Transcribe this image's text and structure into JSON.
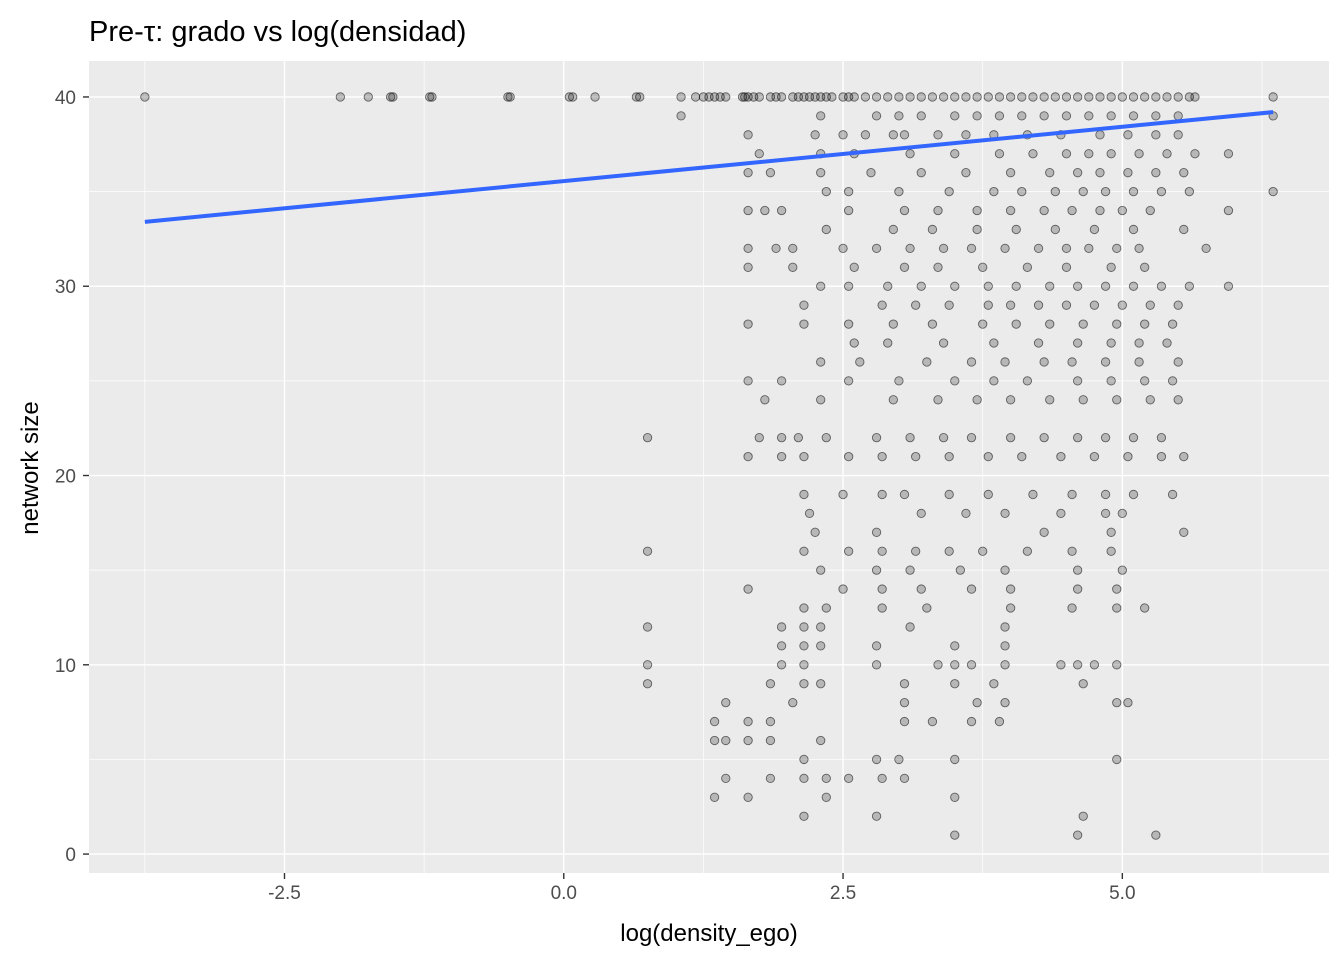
{
  "chart_data": {
    "type": "scatter",
    "title": "Pre-τ: grado vs log(densidad)",
    "xlabel": "log(density_ego)",
    "ylabel": "network size",
    "xlim": [
      -4.25,
      6.85
    ],
    "ylim": [
      -1.0,
      41.9
    ],
    "x_ticks": [
      -2.5,
      0.0,
      2.5,
      5.0
    ],
    "x_tick_labels": [
      "-2.5",
      "0.0",
      "2.5",
      "5.0"
    ],
    "y_ticks": [
      0,
      10,
      20,
      30,
      40
    ],
    "y_tick_labels": [
      "0",
      "10",
      "20",
      "30",
      "40"
    ],
    "grid": true,
    "legend": "none",
    "colors": {
      "panel": "#ebebeb",
      "grid": "#ffffff",
      "points": "#000000",
      "trend": "#3366ff"
    },
    "trend_line": {
      "method": "linear",
      "x": [
        -3.75,
        6.35
      ],
      "y": [
        33.4,
        39.2
      ]
    },
    "points": [
      [
        -3.75,
        40
      ],
      [
        -2.0,
        40
      ],
      [
        -1.75,
        40
      ],
      [
        -1.55,
        40
      ],
      [
        -1.53,
        40
      ],
      [
        -1.2,
        40
      ],
      [
        -1.18,
        40
      ],
      [
        -0.5,
        40
      ],
      [
        -0.48,
        40
      ],
      [
        0.05,
        40
      ],
      [
        0.08,
        40
      ],
      [
        0.28,
        40
      ],
      [
        0.65,
        40
      ],
      [
        0.68,
        40
      ],
      [
        1.05,
        40
      ],
      [
        1.18,
        40
      ],
      [
        1.25,
        40
      ],
      [
        1.3,
        40
      ],
      [
        1.35,
        40
      ],
      [
        1.4,
        40
      ],
      [
        1.45,
        40
      ],
      [
        1.6,
        40
      ],
      [
        1.62,
        40
      ],
      [
        1.65,
        40
      ],
      [
        1.7,
        40
      ],
      [
        1.75,
        40
      ],
      [
        1.85,
        40
      ],
      [
        1.9,
        40
      ],
      [
        1.95,
        40
      ],
      [
        2.05,
        40
      ],
      [
        2.1,
        40
      ],
      [
        2.15,
        40
      ],
      [
        2.2,
        40
      ],
      [
        2.25,
        40
      ],
      [
        2.3,
        40
      ],
      [
        2.35,
        40
      ],
      [
        2.4,
        40
      ],
      [
        2.5,
        40
      ],
      [
        2.55,
        40
      ],
      [
        2.6,
        40
      ],
      [
        2.7,
        40
      ],
      [
        2.8,
        40
      ],
      [
        2.9,
        40
      ],
      [
        3.0,
        40
      ],
      [
        3.1,
        40
      ],
      [
        3.2,
        40
      ],
      [
        3.3,
        40
      ],
      [
        3.4,
        40
      ],
      [
        3.5,
        40
      ],
      [
        3.6,
        40
      ],
      [
        3.7,
        40
      ],
      [
        3.8,
        40
      ],
      [
        3.9,
        40
      ],
      [
        4.0,
        40
      ],
      [
        4.1,
        40
      ],
      [
        4.2,
        40
      ],
      [
        4.3,
        40
      ],
      [
        4.4,
        40
      ],
      [
        4.5,
        40
      ],
      [
        4.6,
        40
      ],
      [
        4.7,
        40
      ],
      [
        4.8,
        40
      ],
      [
        4.9,
        40
      ],
      [
        5.0,
        40
      ],
      [
        5.1,
        40
      ],
      [
        5.2,
        40
      ],
      [
        5.3,
        40
      ],
      [
        5.4,
        40
      ],
      [
        5.5,
        40
      ],
      [
        5.6,
        40
      ],
      [
        5.65,
        40
      ],
      [
        6.35,
        40
      ],
      [
        1.05,
        39
      ],
      [
        2.3,
        39
      ],
      [
        2.8,
        39
      ],
      [
        3.0,
        39
      ],
      [
        3.2,
        39
      ],
      [
        3.5,
        39
      ],
      [
        3.7,
        39
      ],
      [
        3.9,
        39
      ],
      [
        4.1,
        39
      ],
      [
        4.3,
        39
      ],
      [
        4.5,
        39
      ],
      [
        4.7,
        39
      ],
      [
        4.9,
        39
      ],
      [
        5.1,
        39
      ],
      [
        5.3,
        39
      ],
      [
        5.5,
        39
      ],
      [
        6.35,
        39
      ],
      [
        1.65,
        38
      ],
      [
        2.25,
        38
      ],
      [
        2.5,
        38
      ],
      [
        2.7,
        38
      ],
      [
        2.95,
        38
      ],
      [
        3.05,
        38
      ],
      [
        3.35,
        38
      ],
      [
        3.6,
        38
      ],
      [
        3.85,
        38
      ],
      [
        4.15,
        38
      ],
      [
        4.45,
        38
      ],
      [
        4.8,
        38
      ],
      [
        5.05,
        38
      ],
      [
        5.3,
        38
      ],
      [
        5.5,
        38
      ],
      [
        1.75,
        37
      ],
      [
        2.3,
        37
      ],
      [
        2.6,
        37
      ],
      [
        3.1,
        37
      ],
      [
        3.5,
        37
      ],
      [
        3.9,
        37
      ],
      [
        4.2,
        37
      ],
      [
        4.5,
        37
      ],
      [
        4.7,
        37
      ],
      [
        4.9,
        37
      ],
      [
        5.15,
        37
      ],
      [
        5.4,
        37
      ],
      [
        5.65,
        37
      ],
      [
        5.95,
        37
      ],
      [
        1.65,
        36
      ],
      [
        1.85,
        36
      ],
      [
        2.3,
        36
      ],
      [
        2.75,
        36
      ],
      [
        3.2,
        36
      ],
      [
        3.6,
        36
      ],
      [
        4.0,
        36
      ],
      [
        4.35,
        36
      ],
      [
        4.6,
        36
      ],
      [
        4.8,
        36
      ],
      [
        5.05,
        36
      ],
      [
        5.3,
        36
      ],
      [
        5.55,
        36
      ],
      [
        2.35,
        35
      ],
      [
        2.55,
        35
      ],
      [
        3.0,
        35
      ],
      [
        3.45,
        35
      ],
      [
        3.85,
        35
      ],
      [
        4.1,
        35
      ],
      [
        4.4,
        35
      ],
      [
        4.65,
        35
      ],
      [
        4.85,
        35
      ],
      [
        5.1,
        35
      ],
      [
        5.35,
        35
      ],
      [
        5.6,
        35
      ],
      [
        6.35,
        35
      ],
      [
        1.65,
        34
      ],
      [
        1.8,
        34
      ],
      [
        1.95,
        34
      ],
      [
        2.55,
        34
      ],
      [
        3.05,
        34
      ],
      [
        3.35,
        34
      ],
      [
        3.7,
        34
      ],
      [
        4.0,
        34
      ],
      [
        4.3,
        34
      ],
      [
        4.55,
        34
      ],
      [
        4.8,
        34
      ],
      [
        5.0,
        34
      ],
      [
        5.25,
        34
      ],
      [
        5.95,
        34
      ],
      [
        2.35,
        33
      ],
      [
        2.95,
        33
      ],
      [
        3.3,
        33
      ],
      [
        3.7,
        33
      ],
      [
        4.05,
        33
      ],
      [
        4.4,
        33
      ],
      [
        4.75,
        33
      ],
      [
        5.1,
        33
      ],
      [
        5.55,
        33
      ],
      [
        1.65,
        32
      ],
      [
        1.9,
        32
      ],
      [
        2.05,
        32
      ],
      [
        2.5,
        32
      ],
      [
        2.8,
        32
      ],
      [
        3.1,
        32
      ],
      [
        3.4,
        32
      ],
      [
        3.65,
        32
      ],
      [
        3.95,
        32
      ],
      [
        4.25,
        32
      ],
      [
        4.5,
        32
      ],
      [
        4.7,
        32
      ],
      [
        4.95,
        32
      ],
      [
        5.15,
        32
      ],
      [
        5.75,
        32
      ],
      [
        1.65,
        31
      ],
      [
        2.05,
        31
      ],
      [
        2.6,
        31
      ],
      [
        3.05,
        31
      ],
      [
        3.35,
        31
      ],
      [
        3.75,
        31
      ],
      [
        4.15,
        31
      ],
      [
        4.5,
        31
      ],
      [
        4.9,
        31
      ],
      [
        5.2,
        31
      ],
      [
        2.3,
        30
      ],
      [
        2.55,
        30
      ],
      [
        2.9,
        30
      ],
      [
        3.2,
        30
      ],
      [
        3.5,
        30
      ],
      [
        3.8,
        30
      ],
      [
        4.05,
        30
      ],
      [
        4.35,
        30
      ],
      [
        4.6,
        30
      ],
      [
        4.85,
        30
      ],
      [
        5.1,
        30
      ],
      [
        5.35,
        30
      ],
      [
        5.6,
        30
      ],
      [
        5.95,
        30
      ],
      [
        2.15,
        29
      ],
      [
        2.85,
        29
      ],
      [
        3.15,
        29
      ],
      [
        3.45,
        29
      ],
      [
        3.8,
        29
      ],
      [
        4.0,
        29
      ],
      [
        4.25,
        29
      ],
      [
        4.5,
        29
      ],
      [
        4.75,
        29
      ],
      [
        5.0,
        29
      ],
      [
        5.25,
        29
      ],
      [
        5.5,
        29
      ],
      [
        1.65,
        28
      ],
      [
        2.15,
        28
      ],
      [
        2.55,
        28
      ],
      [
        2.95,
        28
      ],
      [
        3.3,
        28
      ],
      [
        3.75,
        28
      ],
      [
        4.05,
        28
      ],
      [
        4.35,
        28
      ],
      [
        4.65,
        28
      ],
      [
        4.95,
        28
      ],
      [
        5.2,
        28
      ],
      [
        5.45,
        28
      ],
      [
        2.6,
        27
      ],
      [
        2.9,
        27
      ],
      [
        3.4,
        27
      ],
      [
        3.85,
        27
      ],
      [
        4.25,
        27
      ],
      [
        4.6,
        27
      ],
      [
        4.9,
        27
      ],
      [
        5.15,
        27
      ],
      [
        5.4,
        27
      ],
      [
        2.3,
        26
      ],
      [
        2.65,
        26
      ],
      [
        3.25,
        26
      ],
      [
        3.65,
        26
      ],
      [
        3.95,
        26
      ],
      [
        4.3,
        26
      ],
      [
        4.55,
        26
      ],
      [
        4.85,
        26
      ],
      [
        5.15,
        26
      ],
      [
        5.5,
        26
      ],
      [
        1.65,
        25
      ],
      [
        1.95,
        25
      ],
      [
        2.55,
        25
      ],
      [
        3.0,
        25
      ],
      [
        3.5,
        25
      ],
      [
        3.85,
        25
      ],
      [
        4.15,
        25
      ],
      [
        4.6,
        25
      ],
      [
        4.9,
        25
      ],
      [
        5.2,
        25
      ],
      [
        5.45,
        25
      ],
      [
        1.8,
        24
      ],
      [
        2.3,
        24
      ],
      [
        2.95,
        24
      ],
      [
        3.35,
        24
      ],
      [
        3.7,
        24
      ],
      [
        4.0,
        24
      ],
      [
        4.35,
        24
      ],
      [
        4.65,
        24
      ],
      [
        4.95,
        24
      ],
      [
        5.25,
        24
      ],
      [
        5.5,
        24
      ],
      [
        0.75,
        22
      ],
      [
        1.75,
        22
      ],
      [
        1.95,
        22
      ],
      [
        2.1,
        22
      ],
      [
        2.35,
        22
      ],
      [
        2.8,
        22
      ],
      [
        3.1,
        22
      ],
      [
        3.4,
        22
      ],
      [
        3.65,
        22
      ],
      [
        4.0,
        22
      ],
      [
        4.3,
        22
      ],
      [
        4.6,
        22
      ],
      [
        4.85,
        22
      ],
      [
        5.1,
        22
      ],
      [
        5.35,
        22
      ],
      [
        1.65,
        21
      ],
      [
        1.95,
        21
      ],
      [
        2.15,
        21
      ],
      [
        2.55,
        21
      ],
      [
        2.85,
        21
      ],
      [
        3.15,
        21
      ],
      [
        3.45,
        21
      ],
      [
        3.8,
        21
      ],
      [
        4.1,
        21
      ],
      [
        4.45,
        21
      ],
      [
        4.75,
        21
      ],
      [
        5.05,
        21
      ],
      [
        5.35,
        21
      ],
      [
        5.55,
        21
      ],
      [
        2.15,
        19
      ],
      [
        2.5,
        19
      ],
      [
        2.85,
        19
      ],
      [
        3.05,
        19
      ],
      [
        3.45,
        19
      ],
      [
        3.8,
        19
      ],
      [
        4.2,
        19
      ],
      [
        4.55,
        19
      ],
      [
        4.85,
        19
      ],
      [
        5.1,
        19
      ],
      [
        5.45,
        19
      ],
      [
        2.2,
        18
      ],
      [
        3.2,
        18
      ],
      [
        3.6,
        18
      ],
      [
        3.95,
        18
      ],
      [
        4.45,
        18
      ],
      [
        4.85,
        18
      ],
      [
        5.0,
        18
      ],
      [
        2.25,
        17
      ],
      [
        2.8,
        17
      ],
      [
        4.3,
        17
      ],
      [
        4.9,
        17
      ],
      [
        5.55,
        17
      ],
      [
        0.75,
        16
      ],
      [
        2.15,
        16
      ],
      [
        2.55,
        16
      ],
      [
        2.85,
        16
      ],
      [
        3.15,
        16
      ],
      [
        3.45,
        16
      ],
      [
        3.75,
        16
      ],
      [
        4.15,
        16
      ],
      [
        4.55,
        16
      ],
      [
        4.9,
        16
      ],
      [
        2.3,
        15
      ],
      [
        2.8,
        15
      ],
      [
        3.1,
        15
      ],
      [
        3.55,
        15
      ],
      [
        3.95,
        15
      ],
      [
        4.6,
        15
      ],
      [
        5.0,
        15
      ],
      [
        1.65,
        14
      ],
      [
        2.5,
        14
      ],
      [
        2.85,
        14
      ],
      [
        3.2,
        14
      ],
      [
        3.65,
        14
      ],
      [
        4.0,
        14
      ],
      [
        4.6,
        14
      ],
      [
        4.95,
        14
      ],
      [
        2.15,
        13
      ],
      [
        2.35,
        13
      ],
      [
        2.85,
        13
      ],
      [
        3.25,
        13
      ],
      [
        4.0,
        13
      ],
      [
        4.55,
        13
      ],
      [
        4.95,
        13
      ],
      [
        5.2,
        13
      ],
      [
        0.75,
        12
      ],
      [
        1.95,
        12
      ],
      [
        2.15,
        12
      ],
      [
        2.3,
        12
      ],
      [
        3.1,
        12
      ],
      [
        3.95,
        12
      ],
      [
        1.95,
        11
      ],
      [
        2.15,
        11
      ],
      [
        2.3,
        11
      ],
      [
        2.8,
        11
      ],
      [
        3.5,
        11
      ],
      [
        3.95,
        11
      ],
      [
        0.75,
        10
      ],
      [
        1.95,
        10
      ],
      [
        2.15,
        10
      ],
      [
        2.8,
        10
      ],
      [
        3.35,
        10
      ],
      [
        3.5,
        10
      ],
      [
        3.65,
        10
      ],
      [
        3.95,
        10
      ],
      [
        4.45,
        10
      ],
      [
        4.6,
        10
      ],
      [
        4.75,
        10
      ],
      [
        4.95,
        10
      ],
      [
        0.75,
        9
      ],
      [
        1.85,
        9
      ],
      [
        2.15,
        9
      ],
      [
        2.3,
        9
      ],
      [
        3.05,
        9
      ],
      [
        3.5,
        9
      ],
      [
        3.85,
        9
      ],
      [
        4.65,
        9
      ],
      [
        1.45,
        8
      ],
      [
        2.05,
        8
      ],
      [
        3.05,
        8
      ],
      [
        3.7,
        8
      ],
      [
        3.95,
        8
      ],
      [
        4.95,
        8
      ],
      [
        5.05,
        8
      ],
      [
        1.35,
        7
      ],
      [
        1.65,
        7
      ],
      [
        1.85,
        7
      ],
      [
        3.05,
        7
      ],
      [
        3.3,
        7
      ],
      [
        3.65,
        7
      ],
      [
        3.9,
        7
      ],
      [
        1.35,
        6
      ],
      [
        1.45,
        6
      ],
      [
        1.65,
        6
      ],
      [
        1.85,
        6
      ],
      [
        2.3,
        6
      ],
      [
        2.15,
        5
      ],
      [
        2.8,
        5
      ],
      [
        3.0,
        5
      ],
      [
        3.5,
        5
      ],
      [
        4.95,
        5
      ],
      [
        1.45,
        4
      ],
      [
        1.85,
        4
      ],
      [
        2.15,
        4
      ],
      [
        2.35,
        4
      ],
      [
        2.55,
        4
      ],
      [
        2.85,
        4
      ],
      [
        3.05,
        4
      ],
      [
        1.35,
        3
      ],
      [
        1.65,
        3
      ],
      [
        2.35,
        3
      ],
      [
        3.5,
        3
      ],
      [
        2.15,
        2
      ],
      [
        2.8,
        2
      ],
      [
        4.65,
        2
      ],
      [
        3.5,
        1
      ],
      [
        4.6,
        1
      ],
      [
        5.3,
        1
      ]
    ]
  }
}
